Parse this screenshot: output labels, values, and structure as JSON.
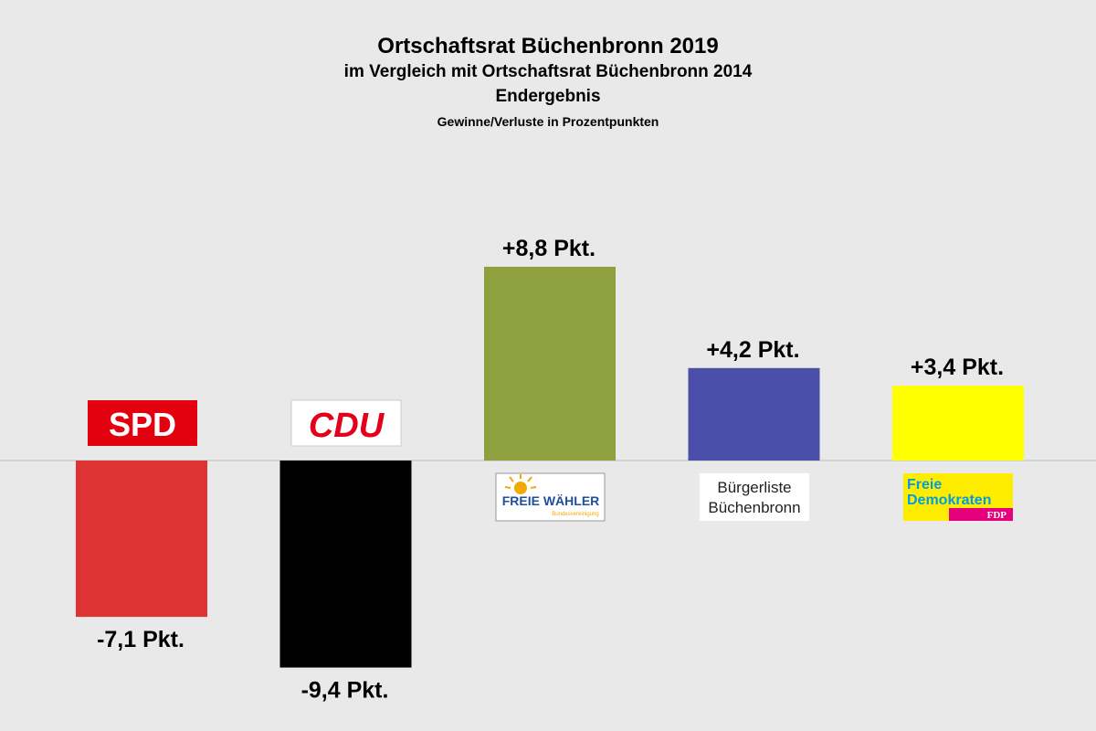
{
  "chart_data": {
    "type": "bar",
    "title": "Ortschaftsrat Büchenbronn 2019",
    "subtitle": "im Vergleich mit Ortschaftsrat Büchenbronn 2014",
    "status": "Endergebnis",
    "note": "Gewinne/Verluste in Prozentpunkten",
    "categories": [
      "SPD",
      "CDU",
      "FREIE WÄHLER",
      "Bürgerliste Büchenbronn",
      "FDP"
    ],
    "values": [
      -7.1,
      -9.4,
      8.8,
      4.2,
      3.4
    ],
    "value_labels": [
      "-7,1 Pkt.",
      "-9,4 Pkt.",
      "+8,8 Pkt.",
      "+4,2 Pkt.",
      "+3,4 Pkt."
    ],
    "colors": [
      "#dd3333",
      "#000000",
      "#8fa13f",
      "#4b4faa",
      "#ffff00"
    ],
    "grid": false,
    "legend": "none"
  },
  "logos": {
    "spd": "SPD",
    "cdu": "CDU",
    "fw_main": "FREIE WÄHLER",
    "fw_sub": "Bundesvereinigung",
    "bl_line1": "Bürgerliste",
    "bl_line2": "Büchenbronn",
    "fdp_line1": "Freie",
    "fdp_line2": "Demokraten",
    "fdp_tag": "FDP"
  }
}
